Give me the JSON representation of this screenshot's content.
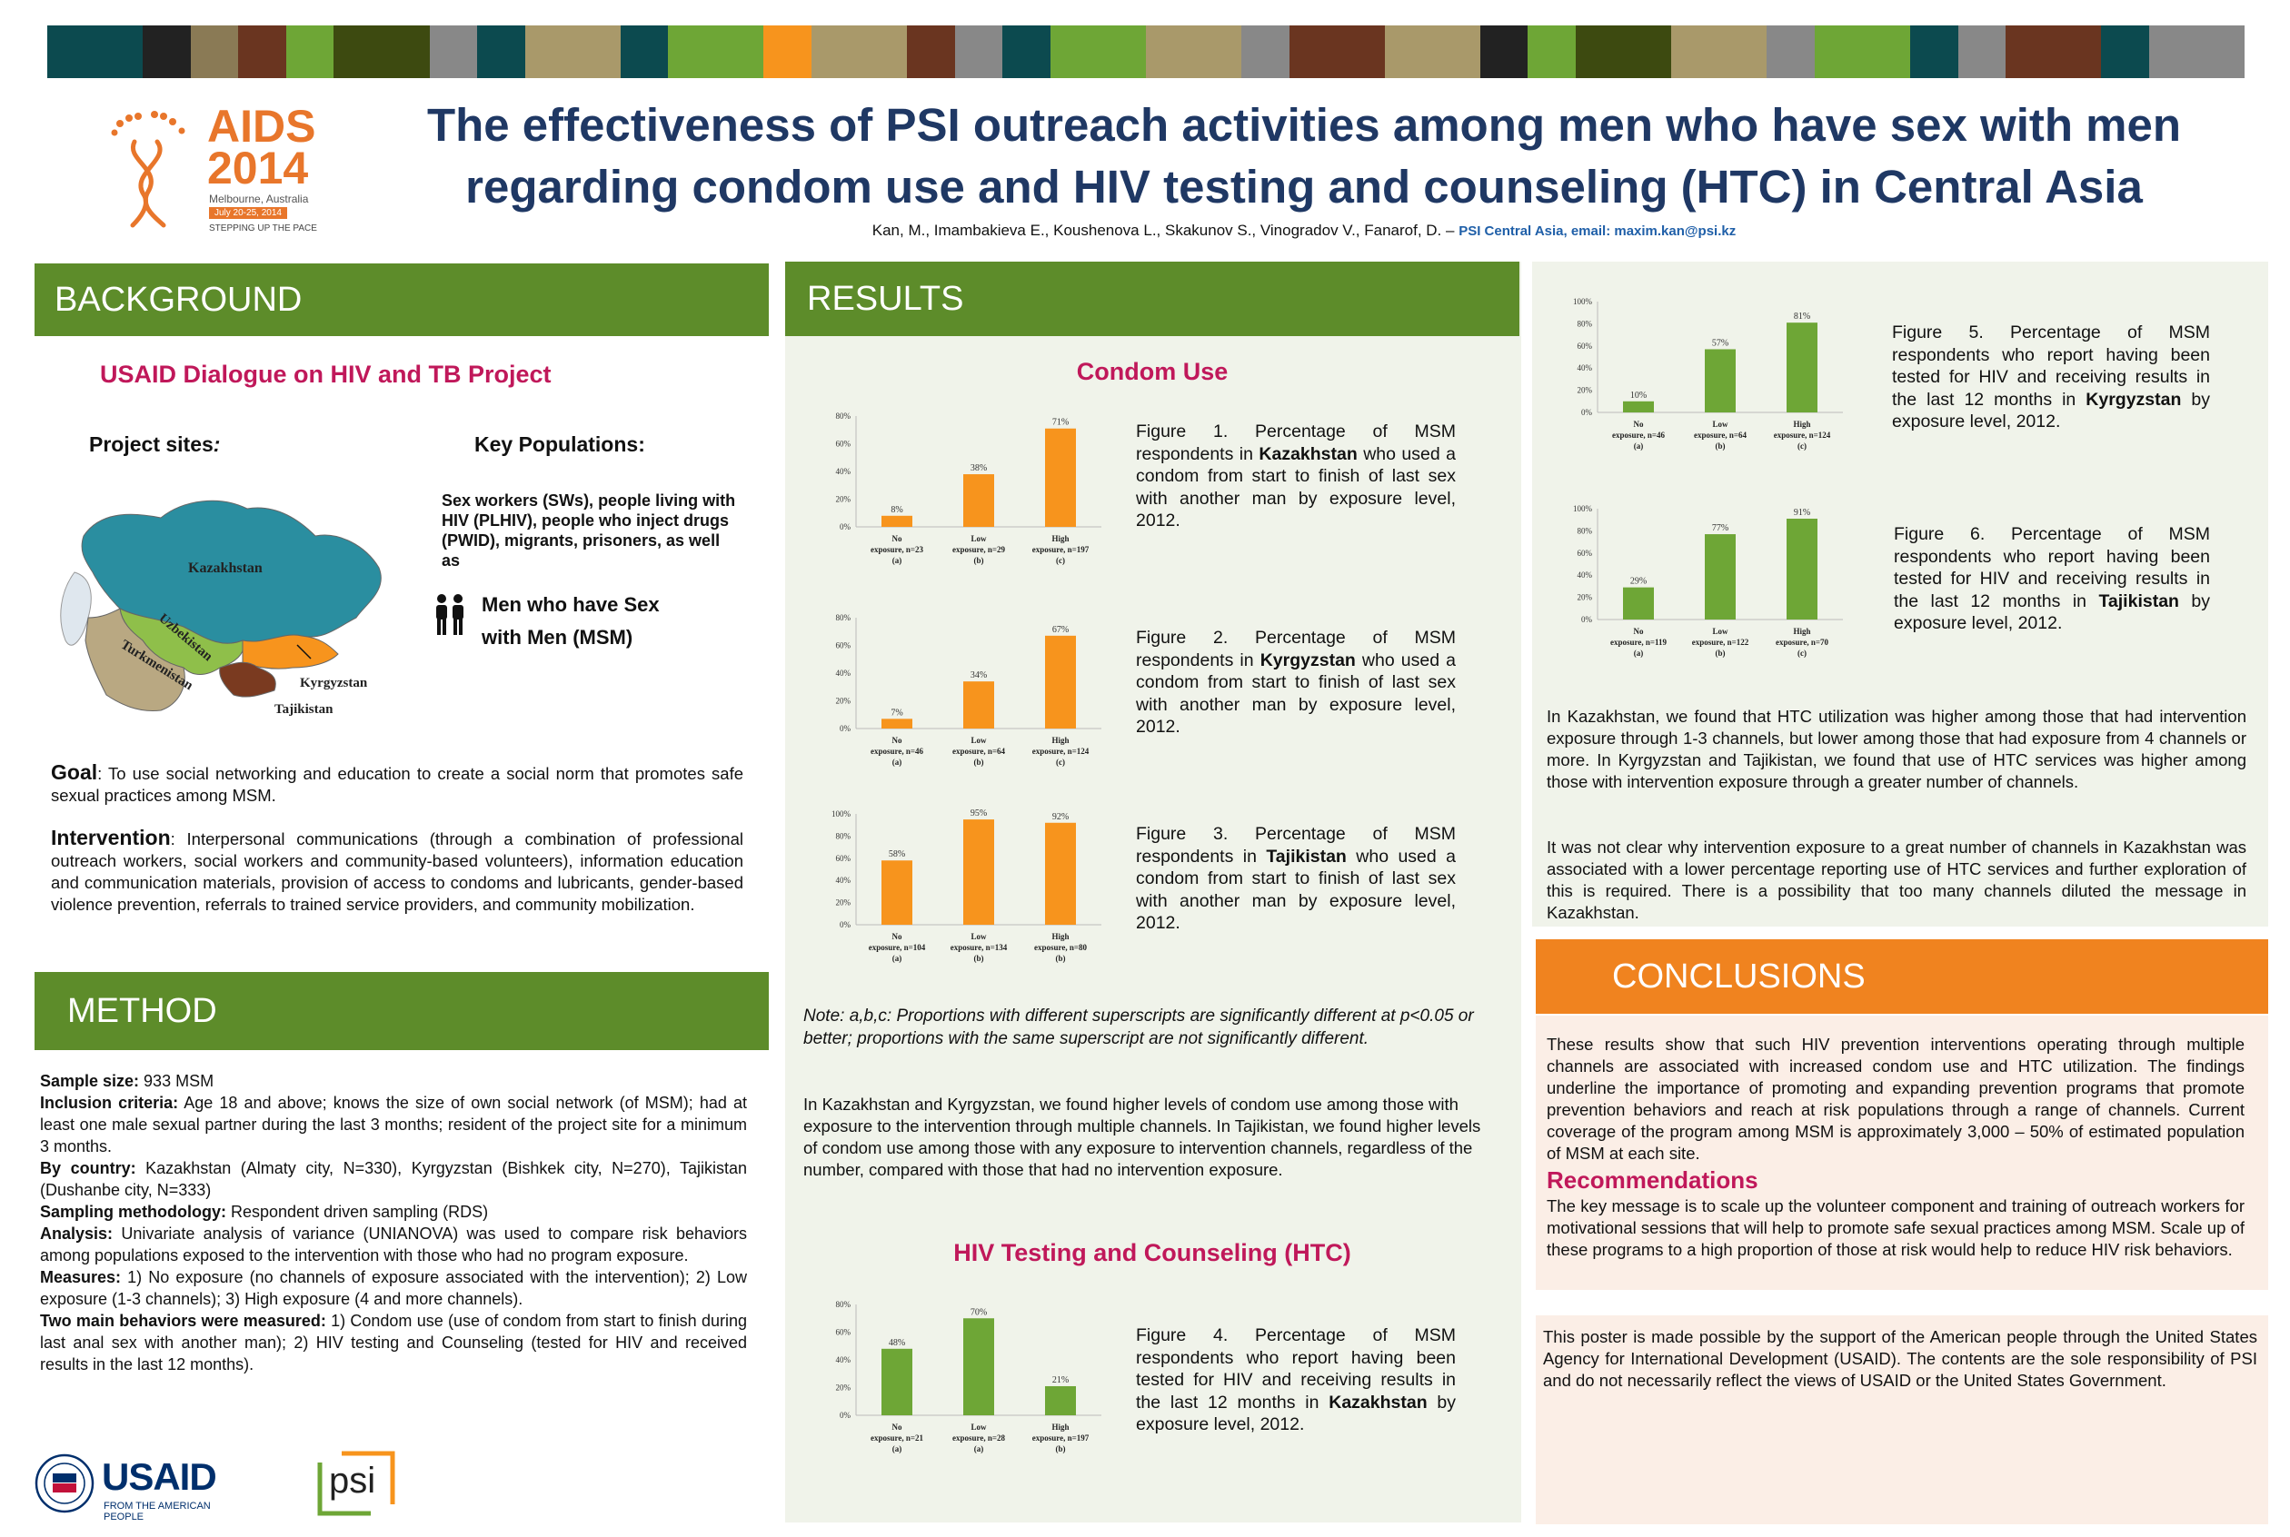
{
  "colors": {
    "green": "#5d8c2a",
    "orange": "#f0831f",
    "bar_green": "#6ea636",
    "bar_orange": "#f7941d",
    "title_blue": "#1f3864",
    "magenta": "#c0185a",
    "panel_bg": "#f0f3ea",
    "conc_bg": "#fbeee6"
  },
  "top_bar_colors": [
    "#0c4a4f",
    "#222222",
    "#8a7a55",
    "#6a3520",
    "#6ea636",
    "#3d4a10",
    "#888888",
    "#0c4a4f",
    "#a9996a",
    "#0c4a4f",
    "#6ea636",
    "#f7941d",
    "#a9996a",
    "#6a3520",
    "#888888",
    "#0c4a4f",
    "#6ea636",
    "#a9996a",
    "#888888",
    "#6a3520",
    "#a9996a",
    "#222222",
    "#6ea636",
    "#3d4a10",
    "#a9996a",
    "#888888",
    "#6ea636",
    "#0c4a4f",
    "#888888",
    "#6a3520",
    "#0c4a4f",
    "#888888"
  ],
  "logo": {
    "name": "AIDS 2014",
    "line1": "AIDS",
    "line2": "2014",
    "city": "Melbourne, Australia",
    "dates": "July 20-25, 2014",
    "tagline": "STEPPING UP THE PACE"
  },
  "title": {
    "line1": "The effectiveness of PSI outreach activities among men who have sex with men",
    "line2": "regarding condom use and HIV testing and counseling (HTC) in Central Asia",
    "authors": "Kan, M., Imambakieva E., Koushenova L., Skakunov S., Vinogradov V., Fanarof, D. –",
    "affil": "PSI Central Asia, email: maxim.kan@psi.kz"
  },
  "background": {
    "header": "BACKGROUND",
    "project": "USAID Dialogue on HIV and TB Project",
    "sites_label": "Project sites",
    "sites_colon": ":",
    "keypop_label": "Key Populations",
    "keypop_colon": ":",
    "keypop_text": "Sex workers (SWs), people living with HIV (PLHIV), people who inject drugs (PWID), migrants, prisoners, as well as",
    "msm_line1": "Men who have Sex",
    "msm_line2": "with Men (MSM)",
    "map_labels": {
      "kaz": "Kazakhstan",
      "uzb": "Uzbekistan",
      "tkm": "Turkmenistan",
      "kgz": "Kyrgyzstan",
      "tjk": "Tajikistan"
    },
    "goal_label": "Goal",
    "goal_text": ": To use social networking and education to create a social norm that promotes safe sexual practices among MSM.",
    "intervention_label": "Intervention",
    "intervention_text": ": Interpersonal communications (through a combination of professional outreach workers, social workers and community-based volunteers), information education and communication materials, provision of access to condoms and lubricants, gender-based violence prevention, referrals to trained service providers, and community mobilization."
  },
  "method": {
    "header": "METHOD",
    "items": [
      {
        "label": "Sample size:",
        "text": " 933 MSM"
      },
      {
        "label": "Inclusion criteria:",
        "text": " Age 18 and above; knows the size of own social network (of MSM); had at least one male sexual partner during the last 3 months;  resident of the project site for a minimum 3 months."
      },
      {
        "label": "By country:",
        "text": " Kazakhstan  (Almaty city, N=330), Kyrgyzstan (Bishkek city, N=270), Tajikistan (Dushanbe city, N=333)"
      },
      {
        "label": "Sampling methodology:",
        "text": " Respondent driven sampling (RDS)"
      },
      {
        "label": "Analysis:",
        "text": " Univariate analysis of variance (UNIANOVA) was used to compare risk behaviors among populations exposed to the intervention with those who had no program exposure."
      },
      {
        "label": "Measures:",
        "text": " 1) No exposure (no channels of exposure associated with the intervention); 2) Low exposure (1-3 channels); 3) High exposure (4 and more channels)."
      },
      {
        "label": "Two main behaviors were measured:",
        "text": " 1) Condom use (use of condom from start to finish during last anal sex with another man); 2) HIV testing and Counseling (tested for HIV and received results in the last 12 months)."
      }
    ],
    "usaid_name": "USAID",
    "usaid_sub": "FROM THE AMERICAN PEOPLE",
    "psi_name": "psi"
  },
  "results": {
    "header": "RESULTS",
    "condom_title": "Condom Use",
    "htc_title": "HIV Testing and Counseling (HTC)",
    "note": "Note: a,b,c: Proportions with different superscripts are significantly different at p<0.05 or better; proportions with the same superscript are not significantly different.",
    "condom_text": "In Kazakhstan and Kyrgyzstan, we found higher levels of condom use among those with exposure to the intervention through multiple channels. In Tajikistan, we found higher levels of condom use among those with any exposure to intervention channels, regardless of the number, compared with those that had no intervention exposure.",
    "fig1": {
      "pre": "Figure 1. Percentage of MSM respondents in ",
      "country": "Kazakhstan",
      "post": " who used a condom from start to finish of last sex with another man by exposure level, 2012."
    },
    "fig2": {
      "pre": "Figure 2. Percentage of MSM respondents in ",
      "country": "Kyrgyzstan",
      "post": " who used a condom from start to finish of last sex with another man by exposure level, 2012."
    },
    "fig3": {
      "pre": "Figure 3. Percentage of MSM respondents in ",
      "country": "Tajikistan",
      "post": " who used a condom from start to finish of last sex with another man by exposure level, 2012."
    },
    "fig4": {
      "pre": "Figure 4. Percentage of MSM respondents who report having been tested for HIV and receiving results in the last 12 months in ",
      "country": "Kazakhstan",
      "post": " by exposure level, 2012."
    },
    "fig5": {
      "pre": "Figure 5. Percentage of MSM respondents who report having been tested for HIV and receiving results in the last 12 months in ",
      "country": "Kyrgyzstan",
      "post": " by exposure level, 2012."
    },
    "fig6": {
      "pre": "Figure 6. Percentage of MSM respondents who report having been tested for HIV and receiving results in the last 12 months in ",
      "country": "Tajikistan",
      "post": " by exposure level, 2012."
    },
    "htc_text1": "In Kazakhstan, we found that HTC utilization was higher among those that had intervention exposure through 1-3 channels, but lower among those that had exposure from 4 channels or more. In Kyrgyzstan and Tajikistan, we found that use of HTC services was higher among those with intervention exposure through a greater number of channels.",
    "htc_text2": "It was not clear why intervention exposure to a great number of channels in Kazakhstan was associated with a lower percentage reporting use of HTC services and further exploration of this is required.  There is a possibility that too many channels diluted  the message in Kazakhstan."
  },
  "conclusions": {
    "header": "CONCLUSIONS",
    "text": "These results show that such HIV prevention interventions operating through multiple channels are associated with increased condom use and HTC utilization. The findings underline the importance of promoting and expanding prevention programs that promote prevention behaviors and reach at risk populations through a range of channels. Current coverage of the program among MSM is approximately 3,000 – 50% of estimated population of MSM at each site.",
    "rec_title": "Recommendations",
    "rec_text": "The key message is to scale up the volunteer component and training of outreach workers for motivational sessions that will help to promote safe sexual practices among MSM. Scale up of these programs to a high proportion of those at risk would help to reduce HIV risk behaviors.",
    "disclaimer": "This poster is made possible by the support of the American people through the United States Agency for International Development (USAID). The contents are the sole responsibility of PSI and do not necessarily reflect the views of USAID or the United States Government."
  },
  "chart_data": [
    {
      "id": "fig1",
      "type": "bar",
      "color": "#f7941d",
      "ylim": [
        0,
        80
      ],
      "yticks": [
        "0%",
        "20%",
        "40%",
        "60%",
        "80%"
      ],
      "categories": [
        [
          "No",
          "exposure, n=23",
          "(a)"
        ],
        [
          "Low",
          "exposure, n=29",
          "(b)"
        ],
        [
          "High",
          "exposure, n=197",
          "(c)"
        ]
      ],
      "values": [
        8,
        38,
        71
      ],
      "labels": [
        "8%",
        "38%",
        "71%"
      ]
    },
    {
      "id": "fig2",
      "type": "bar",
      "color": "#f7941d",
      "ylim": [
        0,
        80
      ],
      "yticks": [
        "0%",
        "20%",
        "40%",
        "60%",
        "80%"
      ],
      "categories": [
        [
          "No",
          "exposure, n=46",
          "(a)"
        ],
        [
          "Low",
          "exposure, n=64",
          "(b)"
        ],
        [
          "High",
          "exposure, n=124",
          "(c)"
        ]
      ],
      "values": [
        7,
        34,
        67
      ],
      "labels": [
        "7%",
        "34%",
        "67%"
      ]
    },
    {
      "id": "fig3",
      "type": "bar",
      "color": "#f7941d",
      "ylim": [
        0,
        100
      ],
      "yticks": [
        "0%",
        "20%",
        "40%",
        "60%",
        "80%",
        "100%"
      ],
      "categories": [
        [
          "No",
          "exposure, n=104",
          "(a)"
        ],
        [
          "Low",
          "exposure, n=134",
          "(b)"
        ],
        [
          "High",
          "exposure, n=80",
          "(b)"
        ]
      ],
      "values": [
        58,
        95,
        92
      ],
      "labels": [
        "58%",
        "95%",
        "92%"
      ]
    },
    {
      "id": "fig4",
      "type": "bar",
      "color": "#6ea636",
      "ylim": [
        0,
        80
      ],
      "yticks": [
        "0%",
        "20%",
        "40%",
        "60%",
        "80%"
      ],
      "categories": [
        [
          "No",
          "exposure, n=21",
          "(a)"
        ],
        [
          "Low",
          "exposure, n=28",
          "(a)"
        ],
        [
          "High",
          "exposure, n=197",
          "(b)"
        ]
      ],
      "values": [
        48,
        70,
        21
      ],
      "labels": [
        "48%",
        "70%",
        "21%"
      ]
    },
    {
      "id": "fig5",
      "type": "bar",
      "color": "#6ea636",
      "ylim": [
        0,
        100
      ],
      "yticks": [
        "0%",
        "20%",
        "40%",
        "60%",
        "80%",
        "100%"
      ],
      "categories": [
        [
          "No",
          "exposure, n=46",
          "(a)"
        ],
        [
          "Low",
          "exposure, n=64",
          "(b)"
        ],
        [
          "High",
          "exposure, n=124",
          "(c)"
        ]
      ],
      "values": [
        10,
        57,
        81
      ],
      "labels": [
        "10%",
        "57%",
        "81%"
      ]
    },
    {
      "id": "fig6",
      "type": "bar",
      "color": "#6ea636",
      "ylim": [
        0,
        100
      ],
      "yticks": [
        "0%",
        "20%",
        "40%",
        "60%",
        "80%",
        "100%"
      ],
      "categories": [
        [
          "No",
          "exposure, n=119",
          "(a)"
        ],
        [
          "Low",
          "exposure, n=122",
          "(b)"
        ],
        [
          "High",
          "exposure, n=70",
          "(c)"
        ]
      ],
      "values": [
        29,
        77,
        91
      ],
      "labels": [
        "29%",
        "77%",
        "91%"
      ]
    }
  ]
}
